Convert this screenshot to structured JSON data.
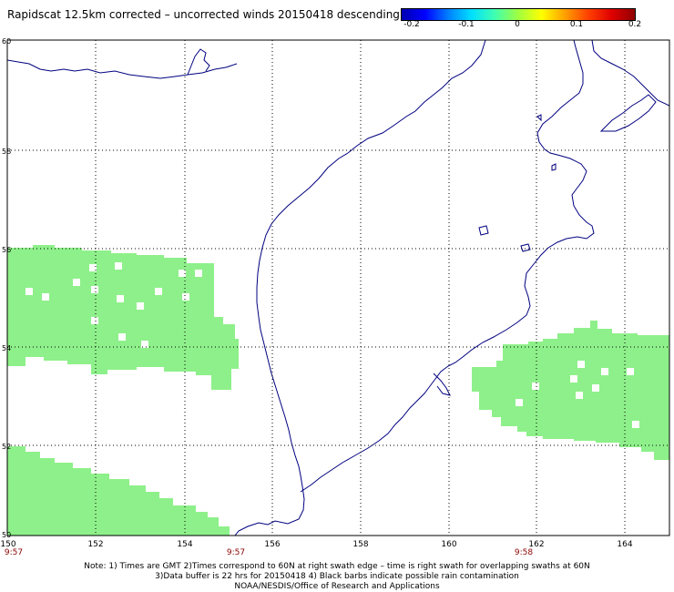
{
  "title": "Rapidscat 12.5km corrected – uncorrected winds 20150418 descending",
  "colorbar": {
    "labels": [
      "-0.2",
      "-0.1",
      "0",
      "0.1",
      "0.2"
    ]
  },
  "axes": {
    "lon_labels": [
      "150",
      "152",
      "154",
      "156",
      "158",
      "160",
      "162",
      "164"
    ],
    "lat_labels": [
      "60",
      "58",
      "56",
      "54",
      "52",
      "50"
    ],
    "time_labels": [
      "9:57",
      "9:57",
      "9:58"
    ]
  },
  "notes": {
    "line1": "Note: 1) Times are GMT 2)Times correspond to 60N at right swath edge – time is right swath for overlapping swaths at 60N",
    "line2": "3)Data buffer is 22 hrs for 20150418 4) Black barbs indicate possible rain contamination",
    "line3": "NOAA/NESDIS/Office of Research and Applications"
  },
  "colors": {
    "swath": "#8ef08a",
    "coast": "#000080",
    "grid": "#000000"
  }
}
